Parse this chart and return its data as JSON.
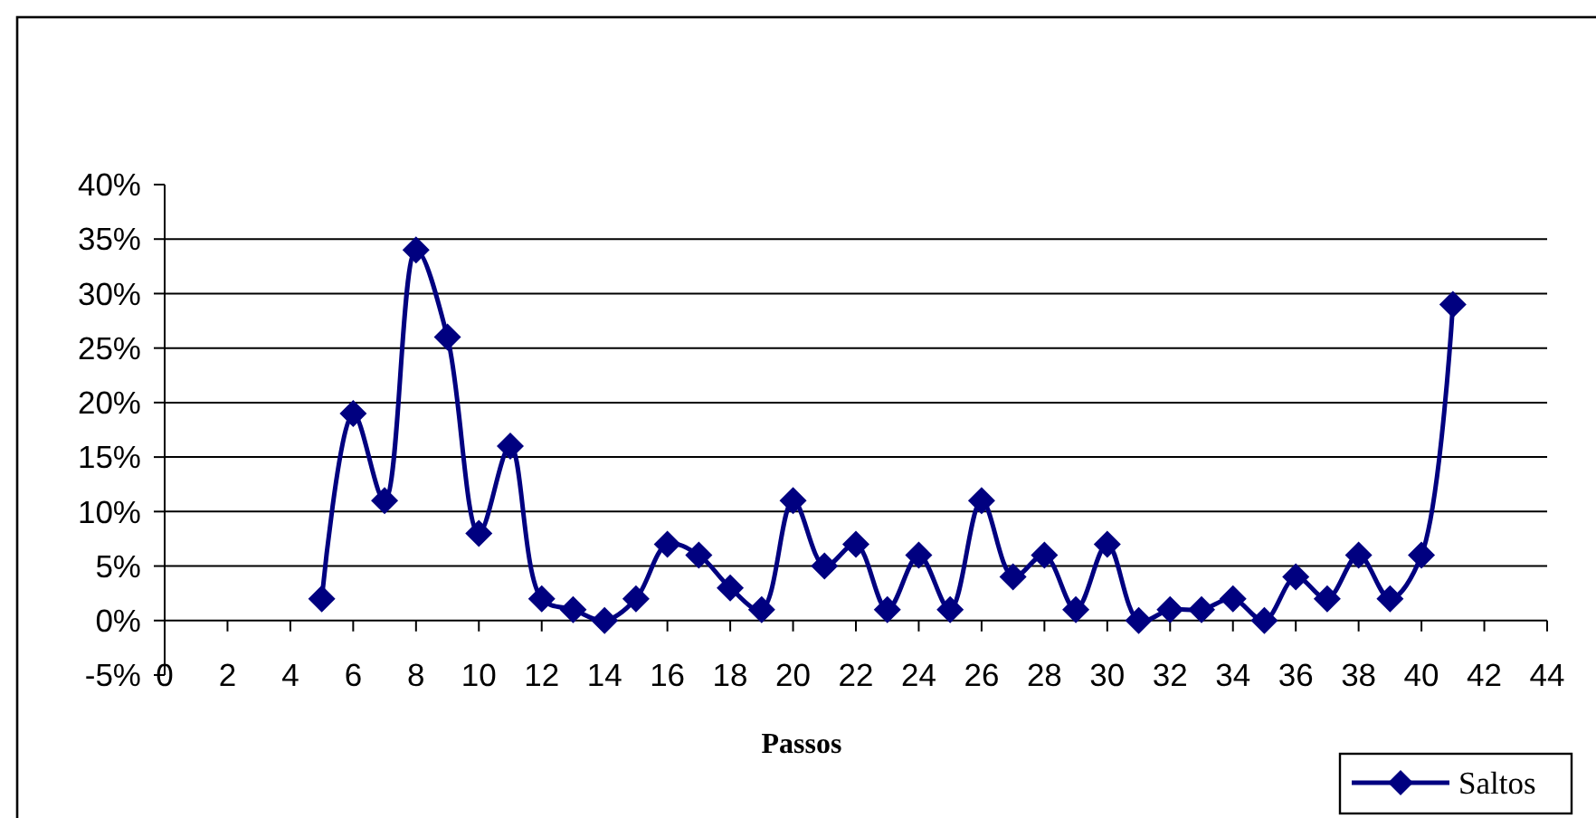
{
  "chart_data": {
    "type": "line",
    "xlabel": "Passos",
    "x": [
      5,
      6,
      7,
      8,
      9,
      10,
      11,
      12,
      13,
      14,
      15,
      16,
      17,
      18,
      19,
      20,
      21,
      22,
      23,
      24,
      25,
      26,
      27,
      28,
      29,
      30,
      31,
      32,
      33,
      34,
      35,
      36,
      37,
      38,
      39,
      40,
      41
    ],
    "series": [
      {
        "name": "Saltos",
        "color": "#000080",
        "values": [
          2,
          19,
          11,
          34,
          26,
          8,
          16,
          2,
          1,
          0,
          2,
          7,
          6,
          3,
          1,
          11,
          5,
          7,
          1,
          6,
          1,
          11,
          4,
          6,
          1,
          7,
          0,
          1,
          1,
          2,
          0,
          4,
          2,
          6,
          2,
          6,
          29
        ]
      }
    ],
    "xlim": [
      0,
      44
    ],
    "xticks": [
      0,
      2,
      4,
      6,
      8,
      10,
      12,
      14,
      16,
      18,
      20,
      22,
      24,
      26,
      28,
      30,
      32,
      34,
      36,
      38,
      40,
      42,
      44
    ],
    "ylim": [
      -5,
      40
    ],
    "yticks": [
      {
        "value": -5,
        "label": "-5%"
      },
      {
        "value": 0,
        "label": "0%"
      },
      {
        "value": 5,
        "label": "5%"
      },
      {
        "value": 10,
        "label": "10%"
      },
      {
        "value": 15,
        "label": "15%"
      },
      {
        "value": 20,
        "label": "20%"
      },
      {
        "value": 25,
        "label": "25%"
      },
      {
        "value": 30,
        "label": "30%"
      },
      {
        "value": 35,
        "label": "35%"
      },
      {
        "value": 40,
        "label": "40%"
      }
    ],
    "grid": "y",
    "legend": "bottom right",
    "marker": "diamond",
    "line_style": "solid"
  }
}
